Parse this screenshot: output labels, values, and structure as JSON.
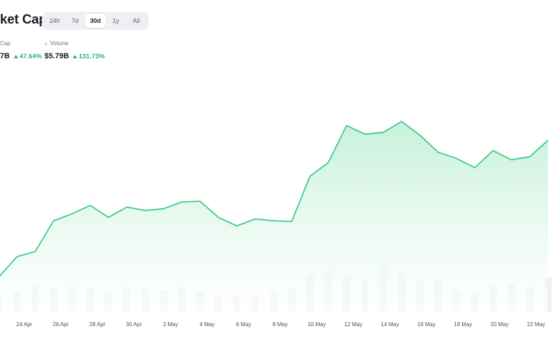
{
  "header": {
    "title": "ket Cap",
    "ranges": [
      "24h",
      "7d",
      "30d",
      "1y",
      "All"
    ],
    "active_range": "30d"
  },
  "stats": [
    {
      "label": "Cap",
      "value": "7B",
      "change": "47.64%"
    },
    {
      "label": "Volume",
      "value": "$5.79B",
      "change": "131.73%"
    }
  ],
  "colors": {
    "line": "#3ecb86",
    "fill_top": "#bff0d6",
    "bar": "#eef0f3",
    "up": "#26b36d"
  },
  "chart_data": {
    "type": "area",
    "x_tick_labels": [
      "24 Apr",
      "26 Apr",
      "28 Apr",
      "30 Apr",
      "2 May",
      "4 May",
      "6 May",
      "8 May",
      "10 May",
      "12 May",
      "14 May",
      "16 May",
      "18 May",
      "20 May",
      "22 May"
    ],
    "series": [
      {
        "kind": "line",
        "values": [
          0.5,
          6.5,
          8,
          17,
          19,
          21.5,
          18,
          21,
          20,
          20.5,
          22.5,
          22.7,
          18,
          15.5,
          17.5,
          17,
          16.8,
          30,
          34,
          44.8,
          42.3,
          42.8,
          46,
          42,
          37,
          35.2,
          32.5,
          37.5,
          34.8,
          35.7,
          40.5
        ]
      },
      {
        "kind": "volume-bar",
        "values": [
          26,
          28,
          40,
          34,
          37,
          35,
          27,
          37,
          32,
          31,
          36,
          30,
          22,
          23,
          25,
          30,
          35,
          54,
          60,
          52,
          47,
          68,
          55,
          45,
          43,
          31,
          29,
          39,
          39,
          36,
          50
        ]
      }
    ],
    "grid": false,
    "legend": "none"
  }
}
